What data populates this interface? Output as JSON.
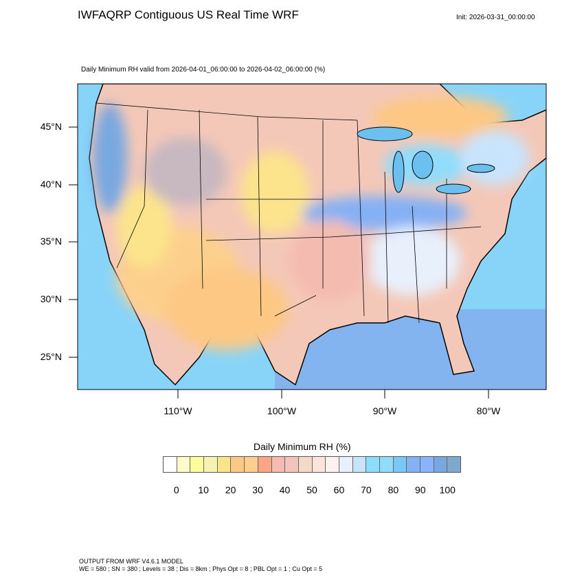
{
  "title": "IWFAQRP Contiguous US Real Time WRF",
  "init": "Init: 2026-03-31_00:00:00",
  "subtitle": "Daily Minimum RH valid from 2026-04-01_06:00:00 to 2026-04-02_06:00:00   (%)",
  "map": {
    "lat_labels": [
      "45°N",
      "40°N",
      "35°N",
      "30°N",
      "25°N"
    ],
    "lon_labels": [
      "110°W",
      "100°W",
      "90°W",
      "80°W"
    ]
  },
  "colorbar": {
    "title": "Daily Minimum RH  (%)",
    "labels": [
      "0",
      "10",
      "20",
      "30",
      "40",
      "50",
      "60",
      "70",
      "80",
      "90",
      "100"
    ],
    "colors": [
      "#ffffff",
      "#fcfcc8",
      "#fcfc9c",
      "#f4f4b0",
      "#fce48c",
      "#fcc884",
      "#fcd08c",
      "#fca484",
      "#f4bcb0",
      "#f4c4bc",
      "#f4d8c8",
      "#fce4dc",
      "#fcf0f0",
      "#e8f0fc",
      "#c8e4fc",
      "#8cdcfc",
      "#90dcfc",
      "#78c8f8",
      "#84b0f4",
      "#88b4fc",
      "#78a8e0",
      "#80a8cc"
    ]
  },
  "footer": {
    "line1": "OUTPUT FROM WRF V4.6.1 MODEL",
    "line2": "WE = 580 ; SN = 380 ; Levels = 38 ; Dis = 8km ; Phys Opt = 8 ; PBL Opt = 1 ; Cu Opt = 5"
  }
}
